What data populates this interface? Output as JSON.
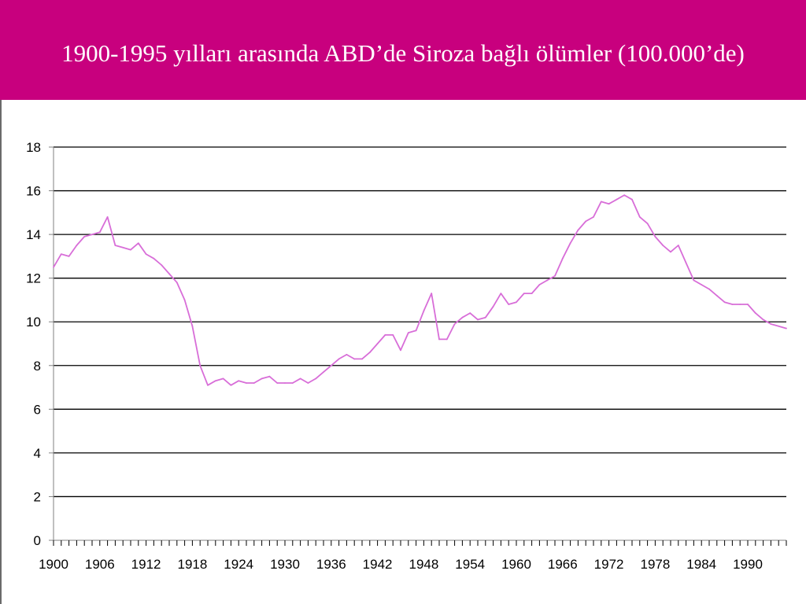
{
  "header": {
    "title": "1900-1995 yılları arasında ABD’de Siroza bağlı ölümler (100.000’de)"
  },
  "colors": {
    "header_bg": "#c8007e",
    "line": "#d86ed8",
    "grid": "#000000"
  },
  "chart_data": {
    "type": "line",
    "title": "",
    "xlabel": "",
    "ylabel": "",
    "xlim": [
      1900,
      1995
    ],
    "ylim": [
      0,
      18
    ],
    "y_ticks": [
      "0",
      "2",
      "4",
      "6",
      "8",
      "10",
      "12",
      "14",
      "16",
      "18"
    ],
    "x_tick_labels": [
      "1900",
      "1906",
      "1912",
      "1918",
      "1924",
      "1930",
      "1936",
      "1942",
      "1948",
      "1954",
      "1960",
      "1966",
      "1972",
      "1978",
      "1984",
      "1990"
    ],
    "grid": true,
    "legend": "none",
    "series": [
      {
        "x": [
          1900,
          1901,
          1902,
          1903,
          1904,
          1905,
          1906,
          1907,
          1908,
          1909,
          1910,
          1911,
          1912,
          1913,
          1914,
          1915,
          1916,
          1917,
          1918,
          1919,
          1920,
          1921,
          1922,
          1923,
          1924,
          1925,
          1926,
          1927,
          1928,
          1929,
          1930,
          1931,
          1932,
          1933,
          1934,
          1935,
          1936,
          1937,
          1938,
          1939,
          1940,
          1941,
          1942,
          1943,
          1944,
          1945,
          1946,
          1947,
          1948,
          1949,
          1950,
          1951,
          1952,
          1953,
          1954,
          1955,
          1956,
          1957,
          1958,
          1959,
          1960,
          1961,
          1962,
          1963,
          1964,
          1965,
          1966,
          1967,
          1968,
          1969,
          1970,
          1971,
          1972,
          1973,
          1974,
          1975,
          1976,
          1977,
          1978,
          1979,
          1980,
          1981,
          1982,
          1983,
          1984,
          1985,
          1986,
          1987,
          1988,
          1989,
          1990,
          1991,
          1992,
          1993,
          1994,
          1995
        ],
        "values": [
          12.5,
          13.1,
          13.0,
          13.5,
          13.9,
          14.0,
          14.1,
          14.8,
          13.5,
          13.4,
          13.3,
          13.6,
          13.1,
          12.9,
          12.6,
          12.2,
          11.8,
          11.0,
          9.8,
          8.0,
          7.1,
          7.3,
          7.4,
          7.1,
          7.3,
          7.2,
          7.2,
          7.4,
          7.5,
          7.2,
          7.2,
          7.2,
          7.4,
          7.2,
          7.4,
          7.7,
          8.0,
          8.3,
          8.5,
          8.3,
          8.3,
          8.6,
          9.0,
          9.4,
          9.4,
          8.7,
          9.5,
          9.6,
          10.5,
          11.3,
          9.2,
          9.2,
          9.9,
          10.2,
          10.4,
          10.1,
          10.2,
          10.7,
          11.3,
          10.8,
          10.9,
          11.3,
          11.3,
          11.7,
          11.9,
          12.1,
          12.9,
          13.6,
          14.2,
          14.6,
          14.8,
          15.5,
          15.4,
          15.6,
          15.8,
          15.6,
          14.8,
          14.5,
          13.9,
          13.5,
          13.2,
          13.5,
          12.7,
          11.9,
          11.7,
          11.5,
          11.2,
          10.9,
          10.8,
          10.8,
          10.8,
          10.4,
          10.1,
          9.9,
          9.8,
          9.7
        ]
      }
    ]
  }
}
